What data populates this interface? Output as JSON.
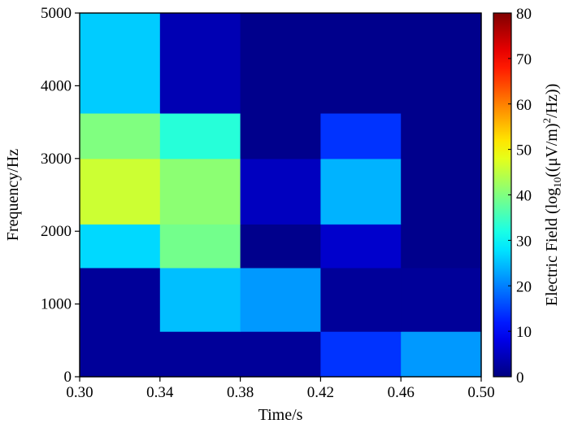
{
  "chart_data": {
    "type": "heatmap",
    "title": "",
    "xlabel": "Time/s",
    "ylabel": "Frequency/Hz",
    "colorbar_label": {
      "prefix": "Electric Field (log",
      "subscript": "10",
      "middle": "((μV/m)",
      "superscript": "2",
      "suffix": "/Hz))"
    },
    "colormap": "jet",
    "xlim": [
      0.3,
      0.5
    ],
    "ylim": [
      0,
      5000
    ],
    "clim": [
      0,
      80
    ],
    "x_ticks": [
      "0.30",
      "0.34",
      "0.38",
      "0.42",
      "0.46",
      "0.50"
    ],
    "y_ticks": [
      "0",
      "1000",
      "2000",
      "3000",
      "4000",
      "5000"
    ],
    "colorbar_ticks": [
      "0",
      "10",
      "20",
      "30",
      "40",
      "50",
      "60",
      "70",
      "80"
    ],
    "x_edges": [
      0.3,
      0.34,
      0.38,
      0.42,
      0.46,
      0.5
    ],
    "y_edges": [
      0,
      625,
      1500,
      2100,
      3000,
      3625,
      5000
    ],
    "values": [
      [
        2,
        2,
        2,
        14,
        22
      ],
      [
        2,
        25,
        22,
        2,
        2
      ],
      [
        27,
        39,
        1,
        6,
        1
      ],
      [
        46,
        41,
        5,
        24,
        1
      ],
      [
        40,
        33,
        1,
        14,
        1
      ],
      [
        26,
        4,
        1,
        1,
        1
      ]
    ]
  }
}
